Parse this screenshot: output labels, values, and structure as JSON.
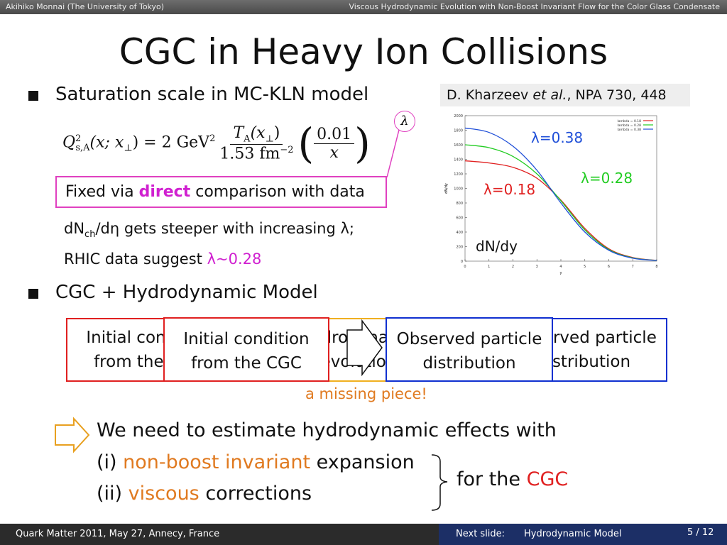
{
  "header": {
    "left": "Akihiko Monnai (The University of Tokyo)",
    "right": "Viscous Hydrodynamic Evolution with Non-Boost Invariant Flow for the Color Glass Condensate"
  },
  "title": "CGC in Heavy Ion Collisions",
  "bullets": [
    "Saturation scale in MC-KLN model",
    "CGC + Hydrodynamic Model"
  ],
  "formula": {
    "lhs": "Q",
    "lhs_sup": "2",
    "lhs_sub": "s,A",
    "lhs_args": "(x; x",
    "perp": "⊥",
    "close": ")",
    "equals": "= 2 GeV",
    "sq": "2",
    "num": "T",
    "num_sub": "A",
    "num_args": "(x",
    "num_close": ")",
    "den": "1.53 fm",
    "den_sup": "−2",
    "frac_num": "0.01",
    "frac_den": "x",
    "lambda": "λ"
  },
  "callout": {
    "before": "Fixed via ",
    "strong": "direct",
    "after": " comparison with data"
  },
  "notes": {
    "line1_a": "dN",
    "line1_sub": "ch",
    "line1_b": "/dη gets steeper with increasing λ;",
    "line2_a": "RHIC data suggest ",
    "line2_b": "λ~0.28"
  },
  "citation": {
    "author": "D. Kharzeev ",
    "etal": "et al.",
    "ref": ", NPA 730, 448"
  },
  "chart_data": {
    "type": "line",
    "x": [
      0,
      1,
      2,
      3,
      4,
      5,
      6,
      7,
      8
    ],
    "xlim": [
      0,
      8
    ],
    "xticks": [
      0,
      1,
      2,
      3,
      4,
      5,
      6,
      7,
      8
    ],
    "xlabel": "y",
    "ylim": [
      0,
      2000
    ],
    "yticks": [
      0,
      200,
      400,
      600,
      800,
      1000,
      1200,
      1400,
      1600,
      1800,
      2000
    ],
    "ylabel": "dN/dy",
    "series": [
      {
        "name": "lambda = 0.18",
        "color": "#e02020",
        "values": [
          1380,
          1350,
          1290,
          1140,
          840,
          450,
          170,
          50,
          10
        ]
      },
      {
        "name": "lambda = 0.28",
        "color": "#22cc22",
        "values": [
          1600,
          1560,
          1440,
          1200,
          830,
          430,
          160,
          45,
          10
        ]
      },
      {
        "name": "lambda = 0.38",
        "color": "#1f4fd8",
        "values": [
          1830,
          1770,
          1580,
          1250,
          800,
          400,
          150,
          40,
          10
        ]
      }
    ],
    "annotations": [
      "λ=0.38",
      "λ=0.28",
      "λ=0.18",
      "dN/dy"
    ]
  },
  "diagram": {
    "initial": [
      "Initial condition",
      "from the CGC"
    ],
    "hydro": [
      "Hydrodynamic",
      "evolution"
    ],
    "observed": [
      "Observed particle",
      "distribution"
    ],
    "missing": "a missing piece!"
  },
  "conclusion": {
    "line1": "We need to estimate hydrodynamic effects with",
    "line2_a": "(i) ",
    "line2_b": "non-boost invariant",
    "line2_c": " expansion",
    "line3_a": "(ii) ",
    "line3_b": "viscous",
    "line3_c": " corrections",
    "side_a": "for the ",
    "side_b": "CGC"
  },
  "footer": {
    "left": "Quark Matter 2011, May 27, Annecy, France",
    "next_label": "Next slide:",
    "next_title": "Hydrodynamic Model",
    "page": "5 / 12"
  }
}
